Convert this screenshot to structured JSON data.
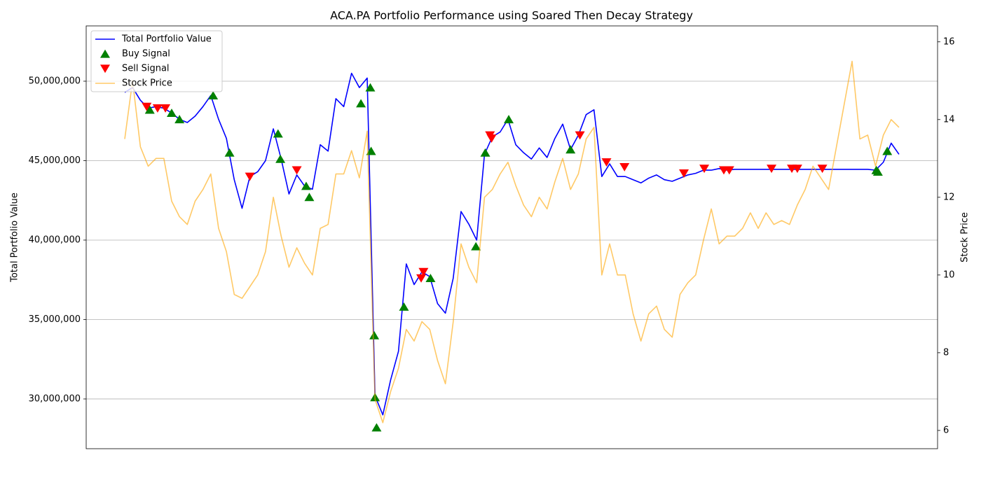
{
  "chart_data": {
    "type": "line",
    "title": "ACA.PA Portfolio Performance using Soared Then Decay Strategy",
    "ylabel": "Total Portfolio Value",
    "y2label": "Stock Price",
    "xlim": [
      -4.93,
      103.93
    ],
    "ylim": [
      26870000,
      53480000
    ],
    "yticks": [
      {
        "value": 30000000,
        "label": "30,000,000"
      },
      {
        "value": 35000000,
        "label": "35,000,000"
      },
      {
        "value": 40000000,
        "label": "40,000,000"
      },
      {
        "value": 45000000,
        "label": "45,000,000"
      },
      {
        "value": 50000000,
        "label": "50,000,000"
      }
    ],
    "y2lim": [
      5.53,
      16.41
    ],
    "y2ticks": [
      6,
      8,
      10,
      12,
      14,
      16
    ],
    "grid": "y",
    "legend": "upper left",
    "series": [
      {
        "name": "Total Portfolio Value",
        "type": "line",
        "color": "#0000ff",
        "values": [
          49300000,
          49600000,
          48800000,
          48300000,
          48400000,
          48300000,
          48000000,
          47600000,
          47400000,
          47800000,
          48400000,
          49100000,
          47600000,
          46400000,
          43800000,
          42000000,
          44000000,
          44300000,
          45000000,
          47000000,
          45100000,
          42900000,
          44100000,
          43400000,
          43200000,
          46000000,
          45600000,
          48900000,
          48400000,
          50500000,
          49600000,
          50200000,
          30200000,
          29000000,
          31200000,
          33000000,
          38500000,
          37200000,
          38000000,
          37700000,
          36000000,
          35400000,
          37600000,
          41800000,
          41000000,
          40000000,
          45400000,
          46500000,
          46800000,
          47600000,
          46000000,
          45500000,
          45100000,
          45800000,
          45200000,
          46400000,
          47300000,
          45700000,
          46600000,
          47900000,
          48200000,
          44000000,
          44800000,
          44000000,
          44000000,
          43800000,
          43600000,
          43900000,
          44100000,
          43800000,
          43700000,
          43900000,
          44100000,
          44200000,
          44400000,
          44400000,
          44500000,
          44400000,
          44450000,
          44450000,
          44450000,
          44450000,
          44450000,
          44450000,
          44450000,
          44450000,
          44450000,
          44450000,
          44450000,
          44450000,
          44450000,
          44450000,
          44450000,
          44450000,
          44450000,
          44450000,
          44400000,
          44900000,
          46100000,
          45400000
        ]
      },
      {
        "name": "Buy Signal",
        "type": "scatter",
        "marker": "^",
        "color": "#008000",
        "x": [
          3.2,
          6.0,
          7.0,
          11.3,
          13.4,
          19.6,
          19.9,
          23.2,
          23.6,
          30.2,
          31.4,
          31.5,
          31.9,
          32.0,
          32.2,
          35.7,
          39.1,
          44.9,
          46.1,
          49.1,
          57.0,
          96.1,
          96.3,
          97.5
        ],
        "values": [
          48200000,
          48000000,
          47600000,
          49100000,
          45500000,
          46700000,
          45100000,
          43400000,
          42700000,
          48600000,
          49600000,
          45600000,
          34000000,
          30100000,
          28200000,
          35800000,
          37600000,
          39600000,
          45500000,
          47600000,
          45700000,
          44400000,
          44300000,
          45600000
        ]
      },
      {
        "name": "Sell Signal",
        "type": "scatter",
        "marker": "v",
        "color": "#ff0000",
        "x": [
          2.8,
          4.2,
          5.2,
          16.0,
          22.0,
          37.9,
          38.2,
          46.7,
          46.9,
          58.2,
          61.6,
          63.9,
          71.5,
          74.1,
          76.6,
          77.3,
          82.7,
          85.3,
          86.0,
          89.2
        ],
        "values": [
          48400000,
          48300000,
          48300000,
          44000000,
          44400000,
          37600000,
          38000000,
          46600000,
          46400000,
          46600000,
          44900000,
          44600000,
          44200000,
          44500000,
          44400000,
          44400000,
          44500000,
          44500000,
          44500000,
          44500000
        ]
      },
      {
        "name": "Stock Price",
        "type": "line",
        "axis": "y2",
        "color": "#ffa500",
        "alpha": 0.6,
        "values": [
          13.5,
          15.0,
          13.3,
          12.8,
          13.0,
          13.0,
          11.9,
          11.5,
          11.3,
          11.9,
          12.2,
          12.6,
          11.2,
          10.6,
          9.5,
          9.4,
          9.7,
          10.0,
          10.6,
          12.0,
          11.0,
          10.2,
          10.7,
          10.3,
          10.0,
          11.2,
          11.3,
          12.6,
          12.6,
          13.2,
          12.5,
          13.7,
          6.8,
          6.2,
          7.0,
          7.6,
          8.6,
          8.3,
          8.8,
          8.6,
          7.8,
          7.2,
          8.8,
          10.8,
          10.2,
          9.8,
          12.0,
          12.2,
          12.6,
          12.9,
          12.3,
          11.8,
          11.5,
          12.0,
          11.7,
          12.4,
          13.0,
          12.2,
          12.6,
          13.5,
          13.8,
          10.0,
          10.8,
          10.0,
          10.0,
          9.0,
          8.3,
          9.0,
          9.2,
          8.6,
          8.4,
          9.5,
          9.8,
          10.0,
          10.9,
          11.7,
          10.8,
          11.0,
          11.0,
          11.2,
          11.6,
          11.2,
          11.6,
          11.3,
          11.4,
          11.3,
          11.8,
          12.2,
          12.8,
          12.5,
          12.2,
          13.3,
          14.4,
          15.5,
          13.5,
          13.6,
          12.8,
          13.6,
          14.0,
          13.8
        ]
      }
    ]
  }
}
